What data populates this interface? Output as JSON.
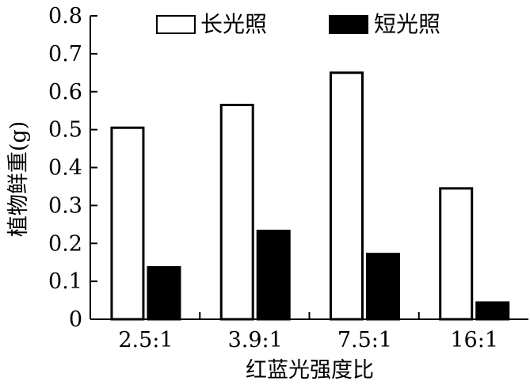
{
  "chart_data": {
    "type": "bar",
    "title": "",
    "xlabel": "红蓝光强度比",
    "ylabel": "植物鲜重(g)",
    "categories": [
      "2.5:1",
      "3.9:1",
      "7.5:1",
      "16:1"
    ],
    "series": [
      {
        "name": "长光照",
        "values": [
          0.505,
          0.565,
          0.65,
          0.345
        ],
        "fill": "#ffffff",
        "stroke": "#000000"
      },
      {
        "name": "短光照",
        "values": [
          0.137,
          0.233,
          0.172,
          0.044
        ],
        "fill": "#000000",
        "stroke": "#000000"
      }
    ],
    "ylim": [
      0,
      0.8
    ],
    "yticks": [
      "0",
      "0.1",
      "0.2",
      "0.3",
      "0.4",
      "0.5",
      "0.6",
      "0.7",
      "0.8"
    ],
    "grid": false,
    "legend_position": "top"
  }
}
